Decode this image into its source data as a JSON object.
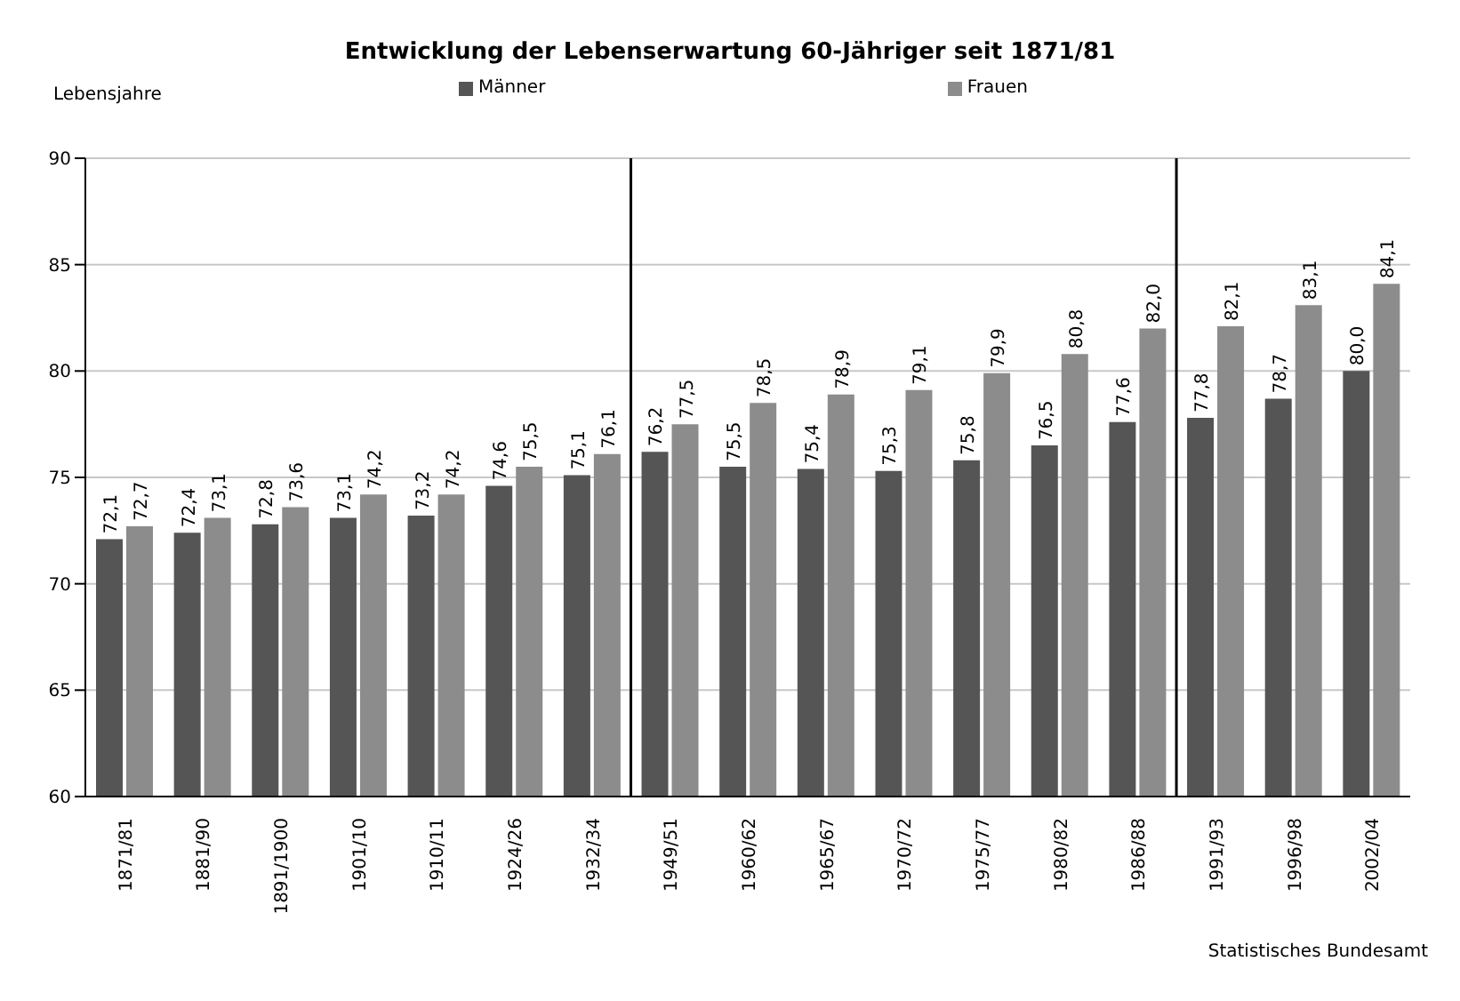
{
  "chart_data": {
    "type": "bar",
    "title": "Entwicklung der Lebenserwartung 60-Jähriger seit 1871/81",
    "ylabel": "Lebensjahre",
    "categories": [
      "1871/81",
      "1881/90",
      "1891/1900",
      "1901/10",
      "1910/11",
      "1924/26",
      "1932/34",
      "1949/51",
      "1960/62",
      "1965/67",
      "1970/72",
      "1975/77",
      "1980/82",
      "1986/88",
      "1991/93",
      "1996/98",
      "2002/04"
    ],
    "series": [
      {
        "name": "Männer",
        "color": "#555555",
        "values": [
          72.1,
          72.4,
          72.8,
          73.1,
          73.2,
          74.6,
          75.1,
          76.2,
          75.5,
          75.4,
          75.3,
          75.8,
          76.5,
          77.6,
          77.8,
          78.7,
          80.0
        ],
        "value_labels": [
          "72,1",
          "72,4",
          "72,8",
          "73,1",
          "73,2",
          "74,6",
          "75,1",
          "76,2",
          "75,5",
          "75,4",
          "75,3",
          "75,8",
          "76,5",
          "77,6",
          "77,8",
          "78,7",
          "80,0"
        ]
      },
      {
        "name": "Frauen",
        "color": "#8c8c8c",
        "values": [
          72.7,
          73.1,
          73.6,
          74.2,
          74.2,
          75.5,
          76.1,
          77.5,
          78.5,
          78.9,
          79.1,
          79.9,
          80.8,
          82.0,
          82.1,
          83.1,
          84.1
        ],
        "value_labels": [
          "72,7",
          "73,1",
          "73,6",
          "74,2",
          "74,2",
          "75,5",
          "76,1",
          "77,5",
          "78,5",
          "78,9",
          "79,1",
          "79,9",
          "80,8",
          "82,0",
          "82,1",
          "83,1",
          "84,1"
        ]
      }
    ],
    "ylim": [
      60,
      90
    ],
    "yticks": [
      60,
      65,
      70,
      75,
      80,
      85,
      90
    ],
    "grid": "y",
    "legend": "top",
    "annotations": [
      "Statistisches Bundesamt"
    ]
  }
}
